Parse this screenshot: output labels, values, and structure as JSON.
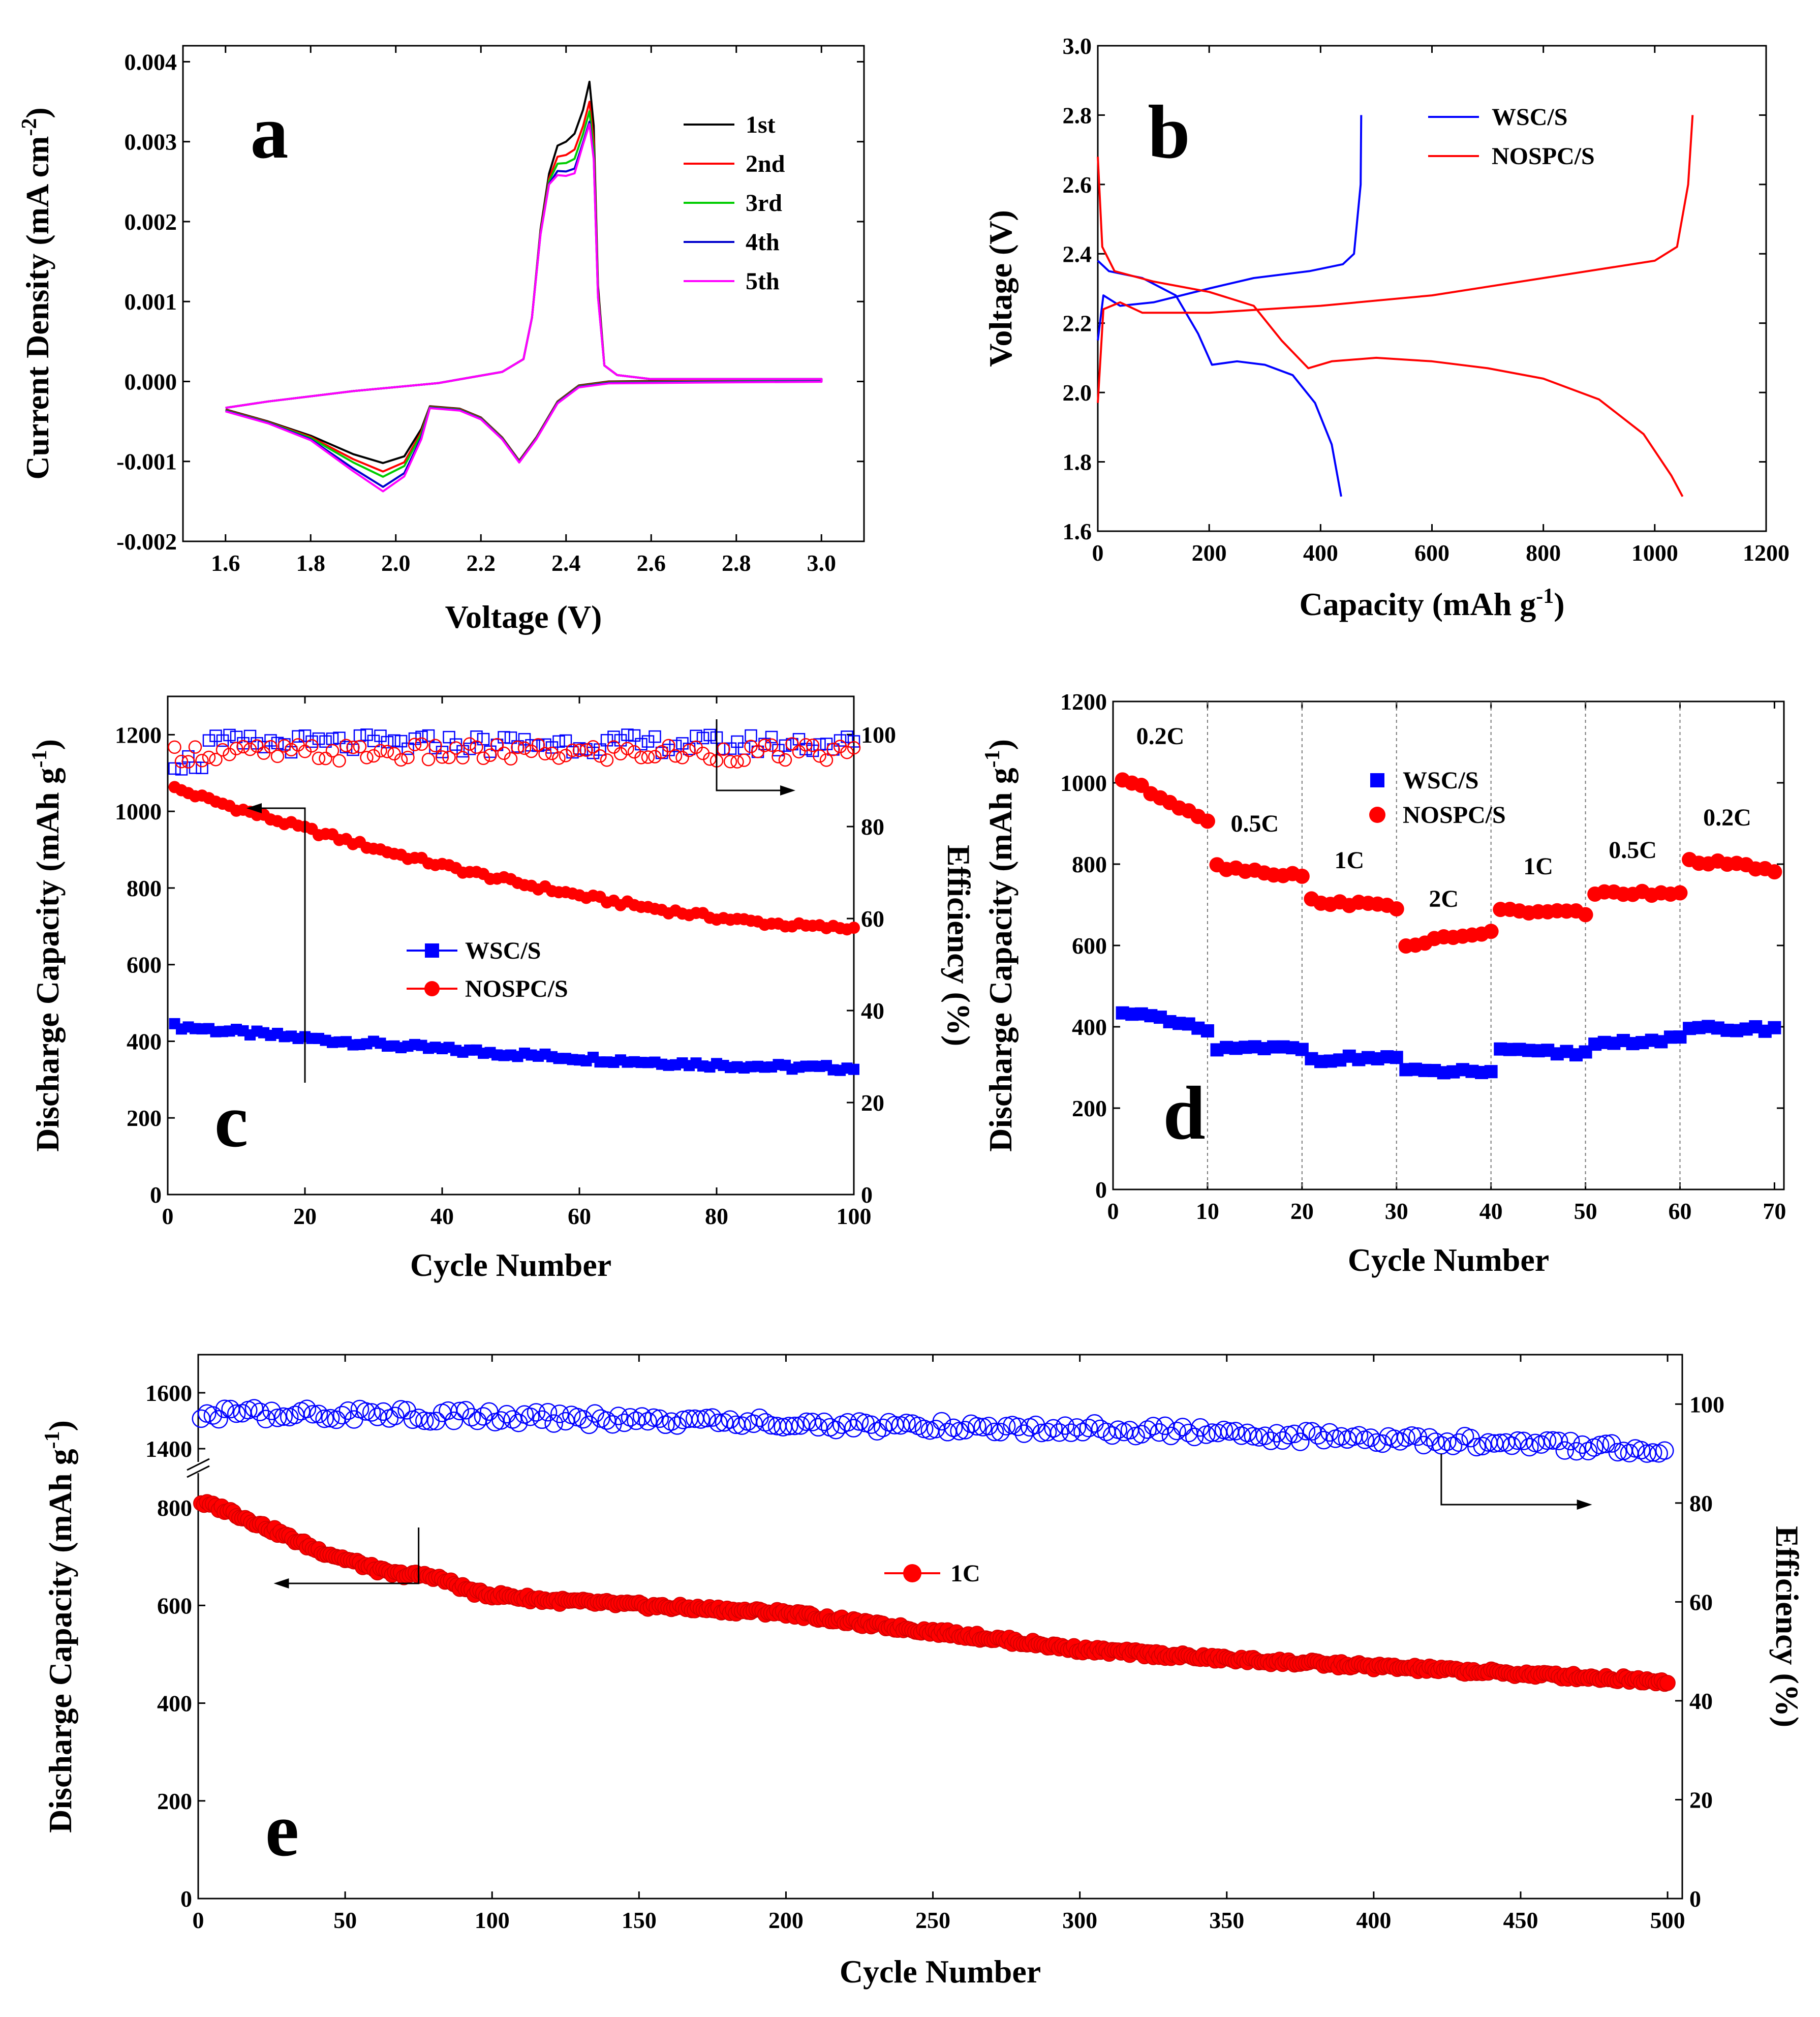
{
  "panels": [
    {
      "id": "a",
      "label": "a"
    },
    {
      "id": "b",
      "label": "b"
    },
    {
      "id": "c",
      "label": "c"
    },
    {
      "id": "d",
      "label": "d"
    },
    {
      "id": "e",
      "label": "e"
    }
  ],
  "chart_data": [
    {
      "panel": "a",
      "type": "line",
      "xlabel": "Voltage (V)",
      "ylabel": "Current Density (mA cm-2)",
      "xlim": [
        1.5,
        3.1
      ],
      "ylim": [
        -0.002,
        0.0042
      ],
      "xticks": [
        1.6,
        1.8,
        2.0,
        2.2,
        2.4,
        2.6,
        2.8,
        3.0
      ],
      "xtick_labels": [
        "1.6",
        "1.8",
        "2.0",
        "2.2",
        "2.4",
        "2.6",
        "2.8",
        "3.0"
      ],
      "yticks": [
        -0.002,
        -0.001,
        0,
        0.001,
        0.002,
        0.003,
        0.004
      ],
      "ytick_labels": [
        "-0.002",
        "-0.001",
        "0.000",
        "0.001",
        "0.002",
        "0.003",
        "0.004"
      ],
      "legend": "top-right",
      "series": [
        {
          "name": "1st",
          "color": "#000000",
          "cathodic_peak1": -0.00102,
          "cathodic_peak2": -0.00099,
          "anodic_peak": 0.00375
        },
        {
          "name": "2nd",
          "color": "#ff0000",
          "cathodic_peak1": -0.00112,
          "cathodic_peak2": -0.00099,
          "anodic_peak": 0.0035
        },
        {
          "name": "3rd",
          "color": "#00cc00",
          "cathodic_peak1": -0.00118,
          "cathodic_peak2": -0.00099,
          "anodic_peak": 0.00338
        },
        {
          "name": "4th",
          "color": "#0000cc",
          "cathodic_peak1": -0.0013,
          "cathodic_peak2": -0.00099,
          "anodic_peak": 0.00325
        },
        {
          "name": "5th",
          "color": "#ff00ff",
          "cathodic_peak1": -0.00135,
          "cathodic_peak2": -0.00099,
          "anodic_peak": 0.00322
        }
      ],
      "shape": {
        "cathodic": [
          [
            1.6,
            -0.00035
          ],
          [
            1.7,
            -0.0005
          ],
          [
            1.8,
            -0.00068
          ],
          [
            1.9,
            -0.00092
          ],
          [
            1.97,
            -0.00104
          ],
          [
            2.02,
            -0.00095
          ],
          [
            2.06,
            -0.0006
          ],
          [
            2.08,
            -0.00031
          ],
          [
            2.15,
            -0.00034
          ],
          [
            2.2,
            -0.00045
          ],
          [
            2.25,
            -0.0007
          ],
          [
            2.29,
            -0.00099
          ],
          [
            2.33,
            -0.0007
          ],
          [
            2.38,
            -0.00025
          ],
          [
            2.43,
            -5e-05
          ],
          [
            2.5,
            0.0
          ],
          [
            2.7,
            1e-05
          ],
          [
            3.0,
            2e-05
          ]
        ],
        "anodic": [
          [
            3.0,
            3e-05
          ],
          [
            2.6,
            3e-05
          ],
          [
            2.52,
            8e-05
          ],
          [
            2.49,
            0.0002
          ],
          [
            2.475,
            0.0012
          ],
          [
            2.465,
            0.0032
          ],
          [
            2.455,
            0.00375
          ],
          [
            2.44,
            0.0034
          ],
          [
            2.42,
            0.0031
          ],
          [
            2.4,
            0.003
          ],
          [
            2.38,
            0.00295
          ],
          [
            2.36,
            0.0026
          ],
          [
            2.34,
            0.0019
          ],
          [
            2.32,
            0.0008
          ],
          [
            2.3,
            0.00028
          ],
          [
            2.25,
            0.00012
          ],
          [
            2.1,
            -2e-05
          ],
          [
            1.9,
            -0.00012
          ],
          [
            1.7,
            -0.00025
          ],
          [
            1.6,
            -0.00033
          ]
        ]
      }
    },
    {
      "panel": "b",
      "type": "line",
      "xlabel": "Capacity (mAh g-1)",
      "ylabel": "Voltage (V)",
      "xlim": [
        0,
        1200
      ],
      "ylim": [
        1.6,
        3.0
      ],
      "xticks": [
        0,
        200,
        400,
        600,
        800,
        1000,
        1200
      ],
      "xtick_labels": [
        "0",
        "200",
        "400",
        "600",
        "800",
        "1000",
        "1200"
      ],
      "yticks": [
        1.6,
        1.8,
        2.0,
        2.2,
        2.4,
        2.6,
        2.8,
        3.0
      ],
      "ytick_labels": [
        "1.6",
        "1.8",
        "2.0",
        "2.2",
        "2.4",
        "2.6",
        "2.8",
        "3.0"
      ],
      "legend": "top-right",
      "series": [
        {
          "name": "WSC/S",
          "color": "#0000ff",
          "discharge": [
            [
              0,
              2.38
            ],
            [
              20,
              2.35
            ],
            [
              80,
              2.33
            ],
            [
              140,
              2.28
            ],
            [
              180,
              2.17
            ],
            [
              205,
              2.08
            ],
            [
              250,
              2.09
            ],
            [
              300,
              2.08
            ],
            [
              350,
              2.05
            ],
            [
              390,
              1.97
            ],
            [
              420,
              1.85
            ],
            [
              437,
              1.7
            ]
          ],
          "charge": [
            [
              0,
              2.15
            ],
            [
              10,
              2.28
            ],
            [
              40,
              2.25
            ],
            [
              100,
              2.26
            ],
            [
              200,
              2.3
            ],
            [
              280,
              2.33
            ],
            [
              380,
              2.35
            ],
            [
              440,
              2.37
            ],
            [
              460,
              2.4
            ],
            [
              472,
              2.6
            ],
            [
              473,
              2.8
            ]
          ]
        },
        {
          "name": "NOSPC/S",
          "color": "#ff0000",
          "discharge": [
            [
              0,
              2.68
            ],
            [
              8,
              2.42
            ],
            [
              30,
              2.35
            ],
            [
              100,
              2.32
            ],
            [
              200,
              2.29
            ],
            [
              280,
              2.25
            ],
            [
              330,
              2.15
            ],
            [
              378,
              2.07
            ],
            [
              420,
              2.09
            ],
            [
              500,
              2.1
            ],
            [
              600,
              2.09
            ],
            [
              700,
              2.07
            ],
            [
              800,
              2.04
            ],
            [
              900,
              1.98
            ],
            [
              980,
              1.88
            ],
            [
              1030,
              1.76
            ],
            [
              1050,
              1.7
            ]
          ],
          "charge": [
            [
              0,
              1.97
            ],
            [
              10,
              2.24
            ],
            [
              40,
              2.26
            ],
            [
              80,
              2.23
            ],
            [
              200,
              2.23
            ],
            [
              400,
              2.25
            ],
            [
              600,
              2.28
            ],
            [
              800,
              2.33
            ],
            [
              1000,
              2.38
            ],
            [
              1040,
              2.42
            ],
            [
              1060,
              2.6
            ],
            [
              1068,
              2.8
            ]
          ]
        }
      ]
    },
    {
      "panel": "c",
      "type": "scatter",
      "xlabel": "Cycle Number",
      "ylabel": "Discharge Capacity (mAh g-1)",
      "y2label": "Efficiency (%)",
      "xlim": [
        0,
        100
      ],
      "ylim": [
        0,
        1300
      ],
      "y2lim": [
        0,
        108.3
      ],
      "xticks": [
        0,
        20,
        40,
        60,
        80,
        100
      ],
      "xtick_labels": [
        "0",
        "20",
        "40",
        "60",
        "80",
        "100"
      ],
      "yticks": [
        0,
        200,
        400,
        600,
        800,
        1000,
        1200
      ],
      "ytick_labels": [
        "0",
        "200",
        "400",
        "600",
        "800",
        "1000",
        "1200"
      ],
      "y2ticks": [
        0,
        20,
        40,
        60,
        80,
        100
      ],
      "y2tick_labels": [
        "0",
        "20",
        "40",
        "60",
        "80",
        "100"
      ],
      "legend": "center",
      "series": [
        {
          "name": "WSC/S",
          "color": "#0000ff",
          "marker": "square",
          "capacity_start": 440,
          "capacity_end": 330,
          "efficiency": 98
        },
        {
          "name": "NOSPC/S",
          "color": "#ff0000",
          "marker": "circle",
          "capacity_start": 1060,
          "capacity_end": 695,
          "efficiency": 96
        }
      ]
    },
    {
      "panel": "d",
      "type": "scatter",
      "xlabel": "Cycle Number",
      "ylabel": "Discharge Capacity (mAh g-1)",
      "xlim": [
        0,
        71
      ],
      "ylim": [
        0,
        1200
      ],
      "xticks": [
        0,
        10,
        20,
        30,
        40,
        50,
        60,
        70
      ],
      "xtick_labels": [
        "0",
        "10",
        "20",
        "30",
        "40",
        "50",
        "60",
        "70"
      ],
      "yticks": [
        0,
        200,
        400,
        600,
        800,
        1000,
        1200
      ],
      "ytick_labels": [
        "0",
        "200",
        "400",
        "600",
        "800",
        "1000",
        "1200"
      ],
      "legend": "top-center",
      "rates": [
        "0.2C",
        "0.5C",
        "1C",
        "2C",
        "1C",
        "0.5C",
        "0.2C"
      ],
      "series": [
        {
          "name": "WSC/S",
          "color": "#0000ff",
          "marker": "square",
          "segments": [
            [
              440,
              390
            ],
            [
              345,
              348
            ],
            [
              320,
              325
            ],
            [
              290,
              290
            ],
            [
              340,
              335
            ],
            [
              360,
              370
            ],
            [
              395,
              395
            ]
          ]
        },
        {
          "name": "NOSPC/S",
          "color": "#ff0000",
          "marker": "circle",
          "segments": [
            [
              1010,
              910
            ],
            [
              795,
              770
            ],
            [
              710,
              695
            ],
            [
              600,
              635
            ],
            [
              685,
              680
            ],
            [
              730,
              725
            ],
            [
              810,
              785
            ]
          ]
        }
      ]
    },
    {
      "panel": "e",
      "type": "scatter",
      "xlabel": "Cycle Number",
      "ylabel": "Discharge Capacity (mAh g-1)",
      "y2label": "Efficiency (%)",
      "xlim": [
        0,
        505
      ],
      "y2lim": [
        0,
        110
      ],
      "xticks": [
        0,
        50,
        100,
        150,
        200,
        250,
        300,
        350,
        400,
        450,
        500
      ],
      "xtick_labels": [
        "0",
        "50",
        "100",
        "150",
        "200",
        "250",
        "300",
        "350",
        "400",
        "450",
        "500"
      ],
      "yticks": [
        0,
        200,
        400,
        600,
        800,
        1400,
        1600
      ],
      "ytick_labels": [
        "0",
        "200",
        "400",
        "600",
        "800",
        "1400",
        "1600"
      ],
      "y2ticks": [
        0,
        20,
        40,
        60,
        80,
        100
      ],
      "y2tick_labels": [
        "0",
        "20",
        "40",
        "60",
        "80",
        "100"
      ],
      "legend": "center",
      "series": [
        {
          "name": "1C",
          "color": "#ff0000",
          "marker": "circle",
          "capacity": [
            [
              1,
              810
            ],
            [
              10,
              795
            ],
            [
              25,
              755
            ],
            [
              40,
              715
            ],
            [
              55,
              685
            ],
            [
              65,
              665
            ],
            [
              80,
              660
            ],
            [
              95,
              625
            ],
            [
              120,
              610
            ],
            [
              150,
              600
            ],
            [
              180,
              590
            ],
            [
              200,
              585
            ],
            [
              230,
              560
            ],
            [
              260,
              540
            ],
            [
              300,
              510
            ],
            [
              350,
              490
            ],
            [
              400,
              475
            ],
            [
              450,
              460
            ],
            [
              500,
              445
            ]
          ]
        },
        {
          "name": "efficiency",
          "color": "#0000ff",
          "marker": "open-circle",
          "efficiency": [
            [
              1,
              98
            ],
            [
              50,
              98
            ],
            [
              100,
              97.5
            ],
            [
              200,
              96
            ],
            [
              300,
              95
            ],
            [
              400,
              93
            ],
            [
              500,
              91
            ]
          ]
        }
      ]
    }
  ]
}
